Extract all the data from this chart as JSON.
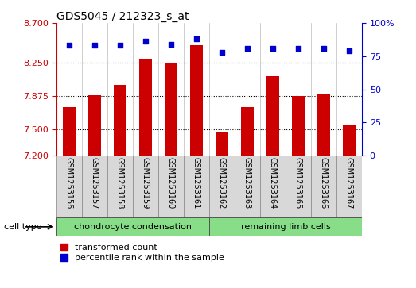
{
  "title": "GDS5045 / 212323_s_at",
  "samples": [
    "GSM1253156",
    "GSM1253157",
    "GSM1253158",
    "GSM1253159",
    "GSM1253160",
    "GSM1253161",
    "GSM1253162",
    "GSM1253163",
    "GSM1253164",
    "GSM1253165",
    "GSM1253166",
    "GSM1253167"
  ],
  "bar_values": [
    7.75,
    7.88,
    8.0,
    8.3,
    8.25,
    8.45,
    7.47,
    7.75,
    8.1,
    7.875,
    7.9,
    7.55
  ],
  "dot_values": [
    83,
    83,
    83,
    86,
    84,
    88,
    78,
    81,
    81,
    81,
    81,
    79
  ],
  "ylim_left": [
    7.2,
    8.7
  ],
  "ylim_right": [
    0,
    100
  ],
  "yticks_left": [
    7.2,
    7.5,
    7.875,
    8.25,
    8.7
  ],
  "yticks_right": [
    0,
    25,
    50,
    75,
    100
  ],
  "bar_color": "#cc0000",
  "dot_color": "#0000cc",
  "cell_groups": [
    {
      "label": "chondrocyte condensation",
      "start": 0,
      "end": 6,
      "color": "#88dd88"
    },
    {
      "label": "remaining limb cells",
      "start": 6,
      "end": 12,
      "color": "#88dd88"
    }
  ],
  "cell_type_label": "cell type",
  "legend_bar_label": "transformed count",
  "legend_dot_label": "percentile rank within the sample",
  "grid_yticks": [
    7.5,
    7.875,
    8.25
  ],
  "bar_width": 0.5,
  "bg_color": "#d8d8d8",
  "plot_bg": "#ffffff",
  "fig_width": 5.23,
  "fig_height": 3.63
}
